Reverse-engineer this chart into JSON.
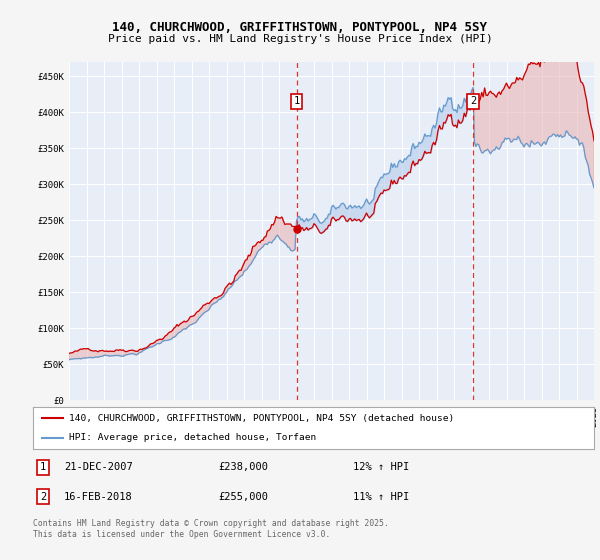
{
  "title_line1": "140, CHURCHWOOD, GRIFFITHSTOWN, PONTYPOOL, NP4 5SY",
  "title_line2": "Price paid vs. HM Land Registry's House Price Index (HPI)",
  "bg_color": "#f5f5f5",
  "plot_bg_color": "#e8eef8",
  "red_color": "#cc0000",
  "blue_color": "#6699cc",
  "fill_blue_color": "#b0c8e8",
  "fill_red_color": "#e8b0b0",
  "ylim": [
    0,
    470000
  ],
  "yticks": [
    0,
    50000,
    100000,
    150000,
    200000,
    250000,
    300000,
    350000,
    400000,
    450000
  ],
  "ytick_labels": [
    "£0",
    "£50K",
    "£100K",
    "£150K",
    "£200K",
    "£250K",
    "£300K",
    "£350K",
    "£400K",
    "£450K"
  ],
  "m1_idx": 156,
  "m2_idx": 277,
  "marker1_date": "21-DEC-2007",
  "marker1_price": "£238,000",
  "marker1_hpi": "12% ↑ HPI",
  "marker2_date": "16-FEB-2018",
  "marker2_price": "£255,000",
  "marker2_hpi": "11% ↑ HPI",
  "legend_line1": "140, CHURCHWOOD, GRIFFITHSTOWN, PONTYPOOL, NP4 5SY (detached house)",
  "legend_line2": "HPI: Average price, detached house, Torfaen",
  "footer": "Contains HM Land Registry data © Crown copyright and database right 2025.\nThis data is licensed under the Open Government Licence v3.0.",
  "dashed_line_color": "#dd3333",
  "grid_color": "#ffffff",
  "n_points": 361
}
